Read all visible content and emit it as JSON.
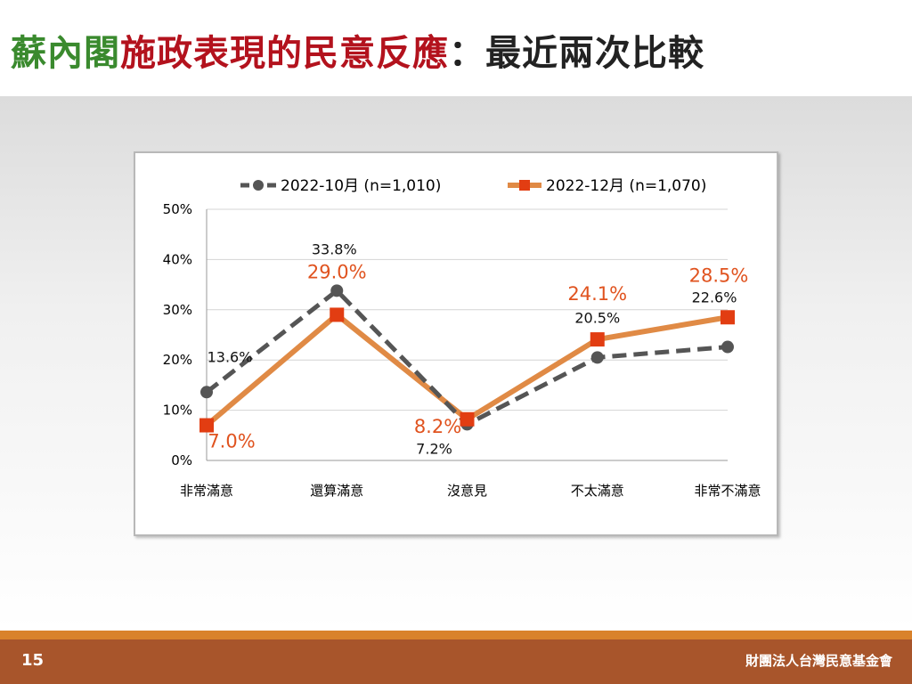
{
  "slide": {
    "title_part1": "蘇內閣",
    "title_part2": "施政表現的民意反應",
    "title_part3": "：最近兩次比較",
    "title_colors": {
      "part1": "#3a8a2e",
      "part2": "#b3121d",
      "part3": "#222222"
    },
    "page_number": "15",
    "org_name": "財團法人台灣民意基金會"
  },
  "chart_data": {
    "type": "line",
    "categories": [
      "非常滿意",
      "還算滿意",
      "沒意見",
      "不太滿意",
      "非常不滿意"
    ],
    "ylim": [
      0,
      50
    ],
    "yticks": [
      "0%",
      "10%",
      "20%",
      "30%",
      "40%",
      "50%"
    ],
    "grid": true,
    "legend_position": "top",
    "series": [
      {
        "name": "2022-10月  (n=1,010)",
        "values": [
          13.6,
          33.8,
          7.2,
          20.5,
          22.6
        ],
        "labels": [
          "13.6%",
          "33.8%",
          "7.2%",
          "20.5%",
          "22.6%"
        ],
        "color": "#555555",
        "style": "dashed",
        "marker": "circle"
      },
      {
        "name": "2022-12月  (n=1,070)",
        "values": [
          7.0,
          29.0,
          8.2,
          24.1,
          28.5
        ],
        "labels": [
          "7.0%",
          "29.0%",
          "8.2%",
          "24.1%",
          "28.5%"
        ],
        "color": "#e08a45",
        "marker_color": "#e23d12",
        "label_color": "#e0531f",
        "style": "solid",
        "marker": "square"
      }
    ]
  }
}
